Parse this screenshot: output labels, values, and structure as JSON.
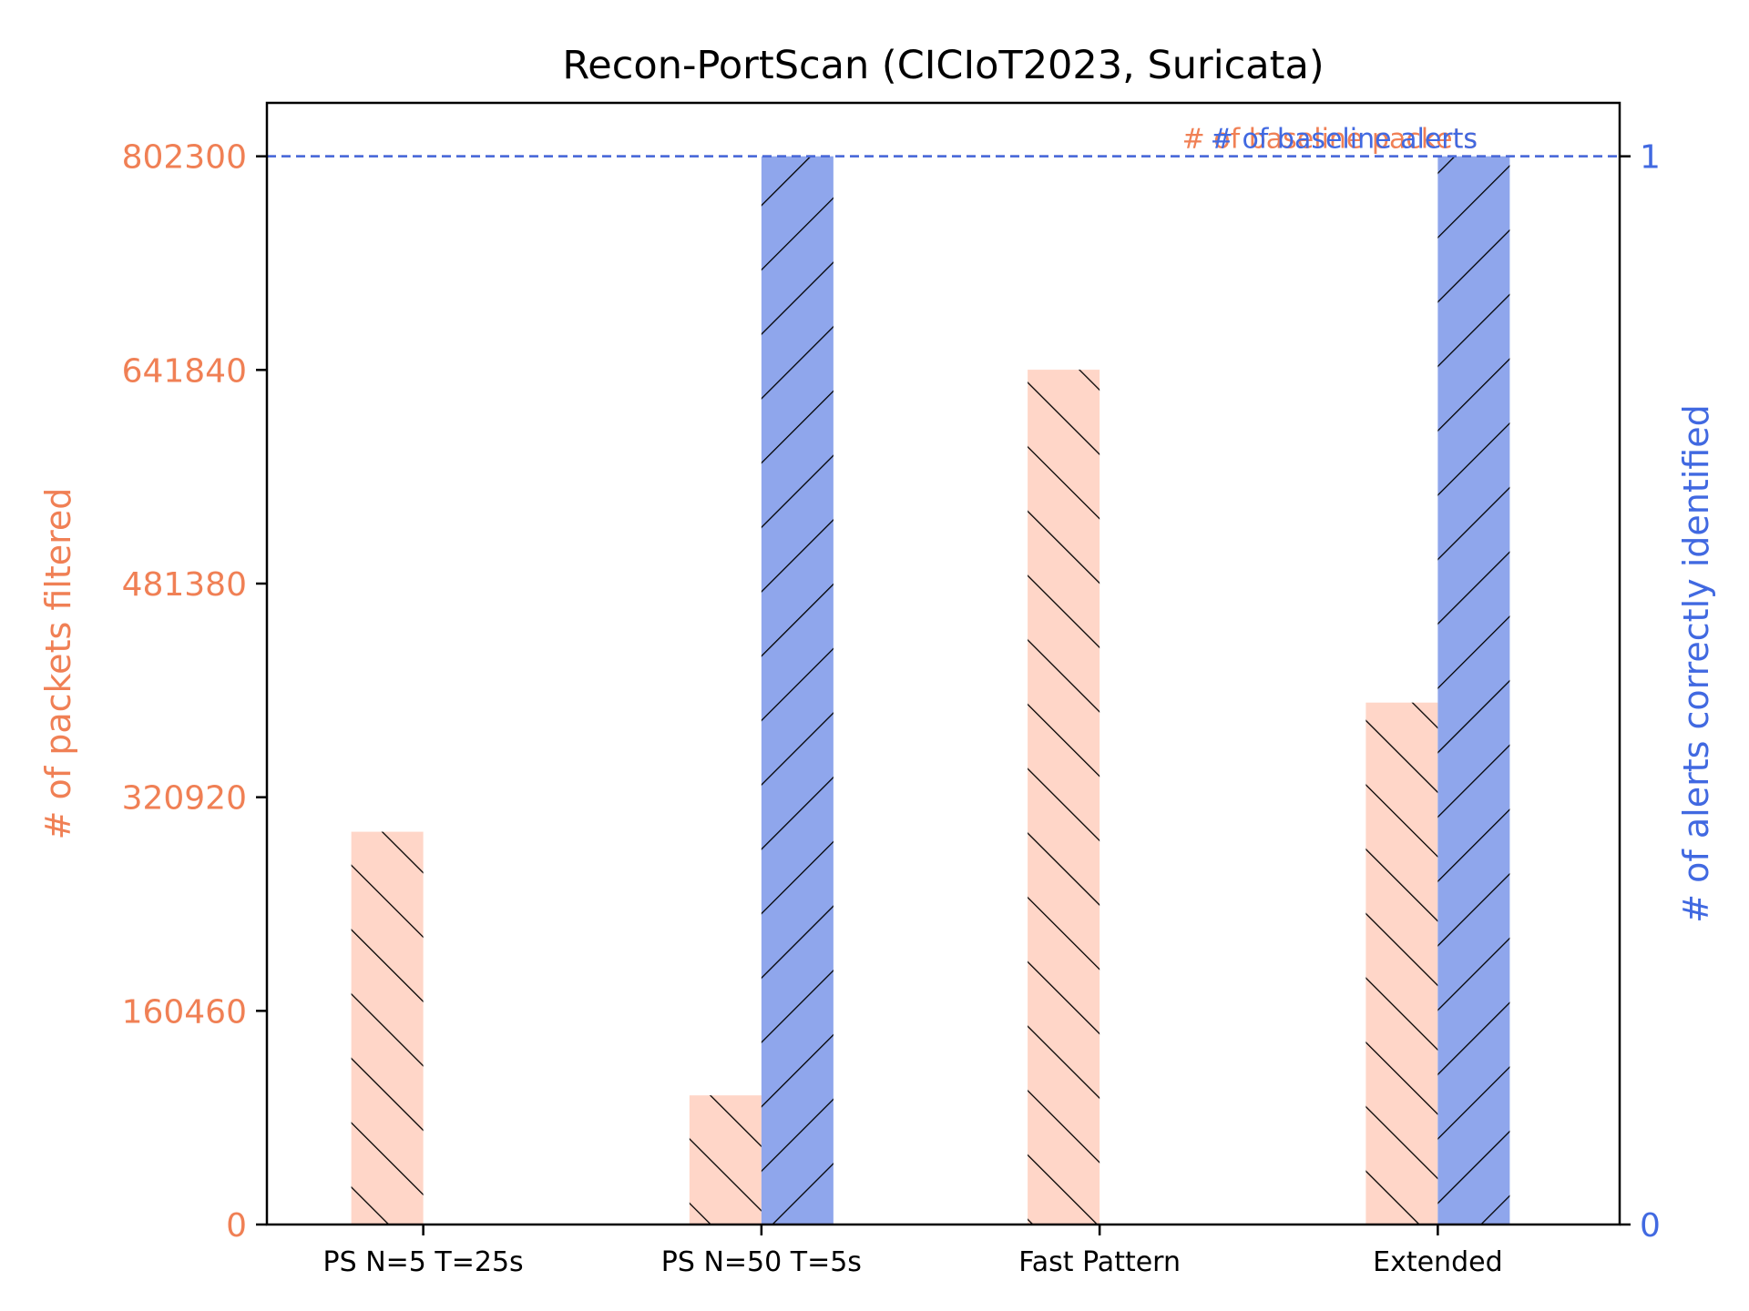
{
  "chart_data": {
    "type": "bar",
    "title": "Recon-PortScan (CICIoT2023, Suricata)",
    "categories": [
      "PS N=5 T=25s",
      "PS N=50 T=5s",
      "Fast Pattern",
      "Extended"
    ],
    "series": [
      {
        "axis": "left",
        "values": [
          295000,
          97000,
          642000,
          392000
        ],
        "color": "#ffd6c8",
        "hatch": "forward-diagonal"
      },
      {
        "axis": "right",
        "values": [
          0,
          1,
          0,
          1
        ],
        "color": "#8fa6ec",
        "hatch": "back-diagonal"
      }
    ],
    "left_axis": {
      "label": "# of packets filtered",
      "color": "#f08055",
      "ticks": [
        0,
        160460,
        320920,
        481380,
        641840,
        802300
      ],
      "tick_labels": [
        "0",
        "160460",
        "320920",
        "481380",
        "641840",
        "802300"
      ],
      "ylim": [
        0,
        842415
      ]
    },
    "right_axis": {
      "label": "# of alerts correctly identified",
      "color": "#4169e1",
      "ticks": [
        0,
        1
      ],
      "tick_labels": [
        "0",
        "1"
      ],
      "ylim": [
        0,
        1.05
      ]
    },
    "reference_lines": [
      {
        "label": "# of baseline packets",
        "axis": "left",
        "value": 802300,
        "color": "#f08055"
      },
      {
        "label": "# of baseline alerts",
        "axis": "right",
        "value": 1,
        "color": "#4169e1"
      }
    ],
    "grid": false,
    "legend": "none"
  }
}
